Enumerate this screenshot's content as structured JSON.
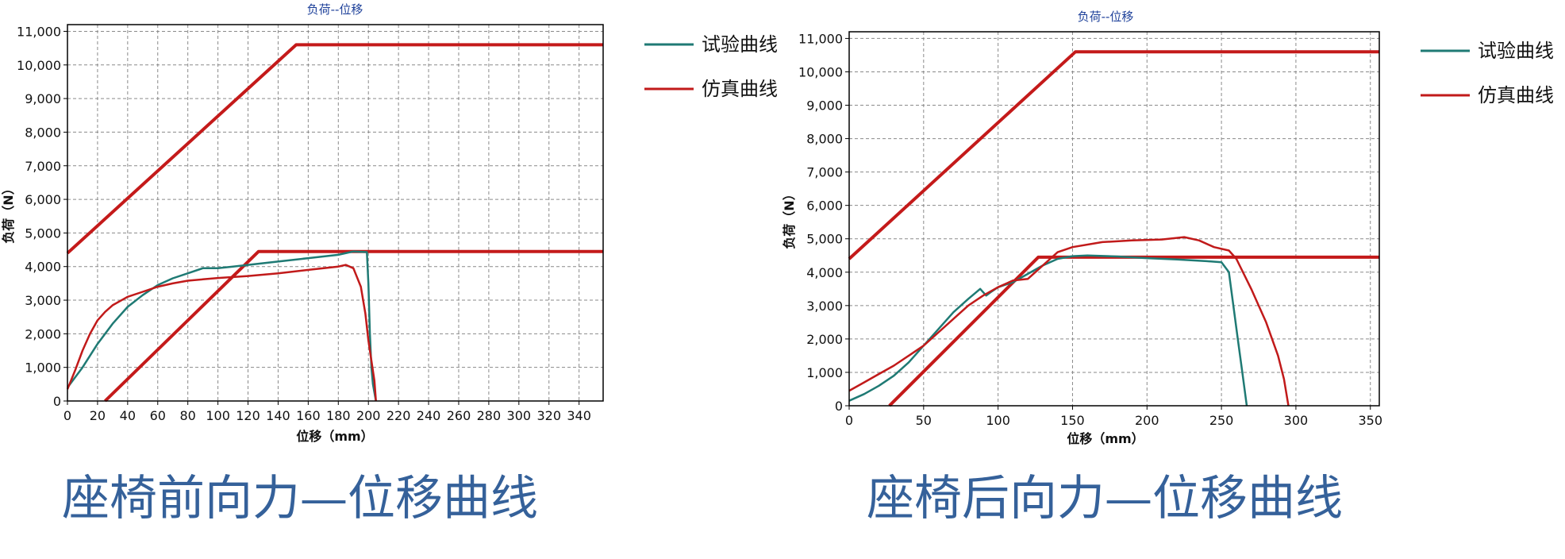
{
  "chart_data": [
    {
      "type": "line",
      "title": "负荷--位移",
      "xlabel": "位移（mm）",
      "ylabel": "负荷（N）",
      "xlim": [
        0,
        356
      ],
      "ylim": [
        0,
        11200
      ],
      "xticks": [
        0,
        20,
        40,
        60,
        80,
        100,
        120,
        140,
        160,
        180,
        200,
        220,
        240,
        260,
        280,
        300,
        320,
        340
      ],
      "yticks": [
        0,
        1000,
        2000,
        3000,
        4000,
        5000,
        6000,
        7000,
        8000,
        9000,
        10000,
        11000
      ],
      "grid": true,
      "legend_position": "top-right-outside",
      "legend": [
        {
          "name": "试验曲线",
          "color": "#1f7a74"
        },
        {
          "name": "仿真曲线",
          "color": "#c11a1a"
        }
      ],
      "series": [
        {
          "name": "试验曲线",
          "color": "#1f7a74",
          "points": [
            [
              0,
              400
            ],
            [
              10,
              1000
            ],
            [
              20,
              1700
            ],
            [
              30,
              2300
            ],
            [
              40,
              2800
            ],
            [
              50,
              3150
            ],
            [
              60,
              3450
            ],
            [
              70,
              3650
            ],
            [
              80,
              3800
            ],
            [
              90,
              3950
            ],
            [
              100,
              3950
            ],
            [
              110,
              4000
            ],
            [
              120,
              4050
            ],
            [
              140,
              4150
            ],
            [
              160,
              4250
            ],
            [
              180,
              4350
            ],
            [
              190,
              4450
            ],
            [
              199,
              4430
            ],
            [
              200,
              3500
            ],
            [
              201,
              2000
            ],
            [
              202,
              1000
            ],
            [
              203,
              500
            ],
            [
              205,
              0
            ]
          ]
        },
        {
          "name": "仿真曲线",
          "color": "#c11a1a",
          "points": [
            [
              0,
              350
            ],
            [
              5,
              900
            ],
            [
              10,
              1500
            ],
            [
              15,
              2000
            ],
            [
              20,
              2400
            ],
            [
              25,
              2650
            ],
            [
              30,
              2850
            ],
            [
              40,
              3100
            ],
            [
              50,
              3250
            ],
            [
              60,
              3400
            ],
            [
              70,
              3500
            ],
            [
              80,
              3580
            ],
            [
              90,
              3620
            ],
            [
              100,
              3660
            ],
            [
              120,
              3720
            ],
            [
              140,
              3800
            ],
            [
              160,
              3900
            ],
            [
              180,
              4000
            ],
            [
              185,
              4050
            ],
            [
              190,
              3950
            ],
            [
              195,
              3400
            ],
            [
              198,
              2600
            ],
            [
              200,
              1800
            ],
            [
              202,
              1200
            ],
            [
              204,
              600
            ],
            [
              205,
              0
            ]
          ]
        }
      ],
      "limit_lines": [
        {
          "color": "#c41a1a",
          "points": [
            [
              0,
              4400
            ],
            [
              152,
              10600
            ],
            [
              356,
              10600
            ]
          ]
        },
        {
          "color": "#c41a1a",
          "points": [
            [
              25,
              0
            ],
            [
              127,
              4450
            ],
            [
              356,
              4450
            ]
          ]
        }
      ]
    },
    {
      "type": "line",
      "title": "负荷--位移",
      "xlabel": "位移（mm）",
      "ylabel": "负荷（N）",
      "xlim": [
        0,
        356
      ],
      "ylim": [
        0,
        11200
      ],
      "xticks": [
        0,
        50,
        100,
        150,
        200,
        250,
        300,
        350
      ],
      "yticks": [
        0,
        1000,
        2000,
        3000,
        4000,
        5000,
        6000,
        7000,
        8000,
        9000,
        10000,
        11000
      ],
      "grid": true,
      "legend_position": "top-right-outside",
      "legend": [
        {
          "name": "试验曲线",
          "color": "#1f7a74"
        },
        {
          "name": "仿真曲线",
          "color": "#c11a1a"
        }
      ],
      "series": [
        {
          "name": "试验曲线",
          "color": "#1f7a74",
          "points": [
            [
              0,
              150
            ],
            [
              10,
              350
            ],
            [
              20,
              600
            ],
            [
              30,
              900
            ],
            [
              40,
              1300
            ],
            [
              50,
              1800
            ],
            [
              60,
              2300
            ],
            [
              70,
              2800
            ],
            [
              80,
              3200
            ],
            [
              88,
              3500
            ],
            [
              92,
              3300
            ],
            [
              95,
              3400
            ],
            [
              100,
              3550
            ],
            [
              110,
              3700
            ],
            [
              120,
              3950
            ],
            [
              130,
              4200
            ],
            [
              140,
              4400
            ],
            [
              150,
              4480
            ],
            [
              160,
              4500
            ],
            [
              180,
              4470
            ],
            [
              200,
              4420
            ],
            [
              220,
              4380
            ],
            [
              240,
              4330
            ],
            [
              250,
              4300
            ],
            [
              255,
              4000
            ],
            [
              258,
              3000
            ],
            [
              261,
              2000
            ],
            [
              264,
              1000
            ],
            [
              267,
              0
            ]
          ]
        },
        {
          "name": "仿真曲线",
          "color": "#c11a1a",
          "points": [
            [
              0,
              450
            ],
            [
              10,
              700
            ],
            [
              20,
              950
            ],
            [
              30,
              1200
            ],
            [
              40,
              1500
            ],
            [
              50,
              1800
            ],
            [
              60,
              2200
            ],
            [
              70,
              2600
            ],
            [
              80,
              3000
            ],
            [
              90,
              3300
            ],
            [
              100,
              3550
            ],
            [
              110,
              3750
            ],
            [
              120,
              3800
            ],
            [
              130,
              4200
            ],
            [
              140,
              4600
            ],
            [
              150,
              4750
            ],
            [
              170,
              4900
            ],
            [
              190,
              4950
            ],
            [
              210,
              4980
            ],
            [
              225,
              5050
            ],
            [
              235,
              4950
            ],
            [
              245,
              4750
            ],
            [
              255,
              4650
            ],
            [
              260,
              4400
            ],
            [
              270,
              3500
            ],
            [
              280,
              2500
            ],
            [
              288,
              1500
            ],
            [
              292,
              800
            ],
            [
              295,
              0
            ]
          ]
        }
      ],
      "limit_lines": [
        {
          "color": "#c41a1a",
          "points": [
            [
              0,
              4400
            ],
            [
              152,
              10600
            ],
            [
              356,
              10600
            ]
          ]
        },
        {
          "color": "#c41a1a",
          "points": [
            [
              27,
              0
            ],
            [
              127,
              4450
            ],
            [
              356,
              4450
            ]
          ]
        }
      ]
    }
  ],
  "captions": [
    "座椅前向力—位移曲线",
    "座椅后向力—位移曲线"
  ]
}
